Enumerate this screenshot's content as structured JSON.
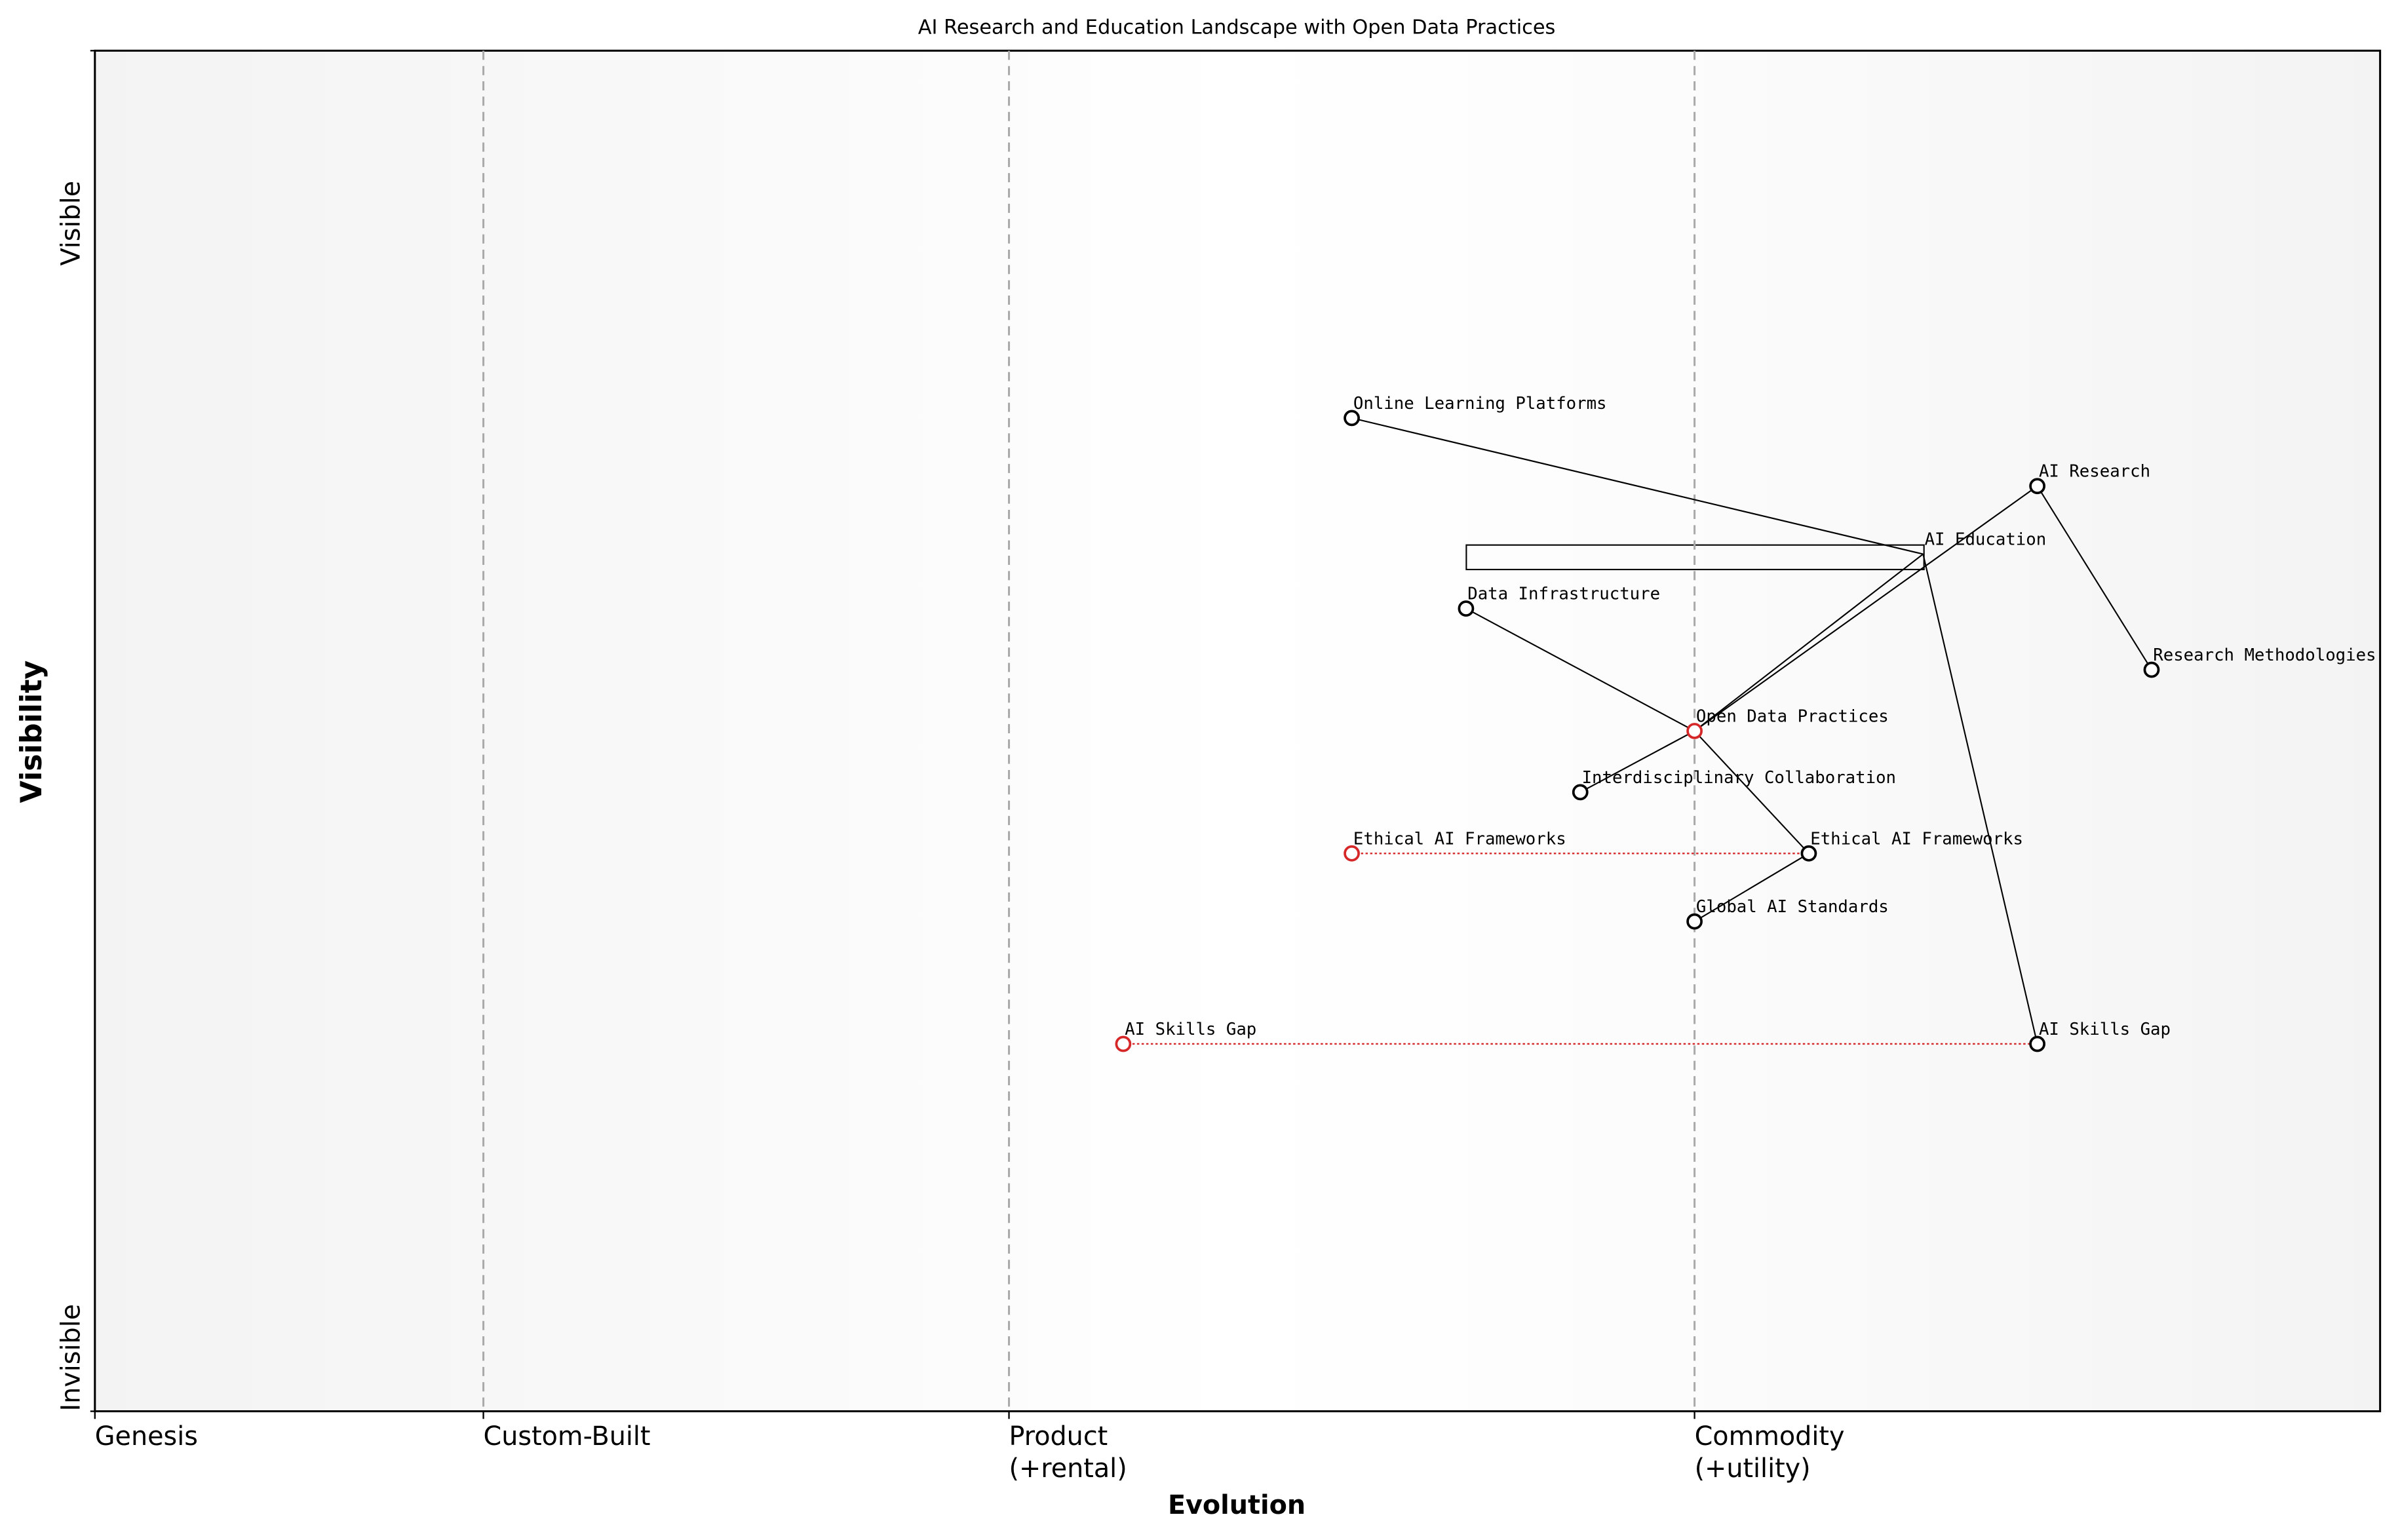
{
  "chart_data": {
    "type": "wardley",
    "title": "AI Research and Education Landscape with Open Data Practices",
    "xlabel": "Evolution",
    "ylabel": "Visibility",
    "xlim": [
      0,
      1
    ],
    "ylim": [
      0,
      1
    ],
    "xticks": [
      {
        "value": 0,
        "label": "Genesis"
      },
      {
        "value": 0.17,
        "label": "Custom-Built"
      },
      {
        "value": 0.4,
        "label": "Product\n(+rental)"
      },
      {
        "value": 0.7,
        "label": "Commodity\n(+utility)"
      }
    ],
    "stage_lines": true,
    "yticks": [
      {
        "value": 1,
        "label": "Visible"
      },
      {
        "value": 0,
        "label": "Invisible"
      }
    ],
    "node_color": "#000000",
    "nodes": [
      {
        "label": "Online Learning Platforms",
        "evolution": 0.55,
        "visibility": 0.73
      },
      {
        "label": "AI Research",
        "evolution": 0.85,
        "visibility": 0.68
      },
      {
        "label": "AI Education",
        "evolution": 0.8,
        "visibility": 0.63,
        "marker": false
      },
      {
        "label": "Data Infrastructure",
        "evolution": 0.6,
        "visibility": 0.59
      },
      {
        "label": "Research Methodologies",
        "evolution": 0.9,
        "visibility": 0.545
      },
      {
        "label": "Open Data Practices",
        "evolution": 0.7,
        "visibility": 0.5,
        "color": "#d62728"
      },
      {
        "label": "Interdisciplinary Collaboration",
        "evolution": 0.65,
        "visibility": 0.455
      },
      {
        "label": "Ethical AI Frameworks",
        "evolution": 0.75,
        "visibility": 0.41
      },
      {
        "label": "Global AI Standards",
        "evolution": 0.7,
        "visibility": 0.36
      },
      {
        "label": "AI Skills Gap",
        "evolution": 0.85,
        "visibility": 0.27
      }
    ],
    "edges": [
      [
        0,
        2
      ],
      [
        2,
        5
      ],
      [
        1,
        5
      ],
      [
        2,
        9
      ],
      [
        1,
        4
      ],
      [
        3,
        5
      ],
      [
        5,
        6
      ],
      [
        5,
        7
      ],
      [
        7,
        8
      ]
    ],
    "evolutions": [
      {
        "node": 7,
        "from": 0.55,
        "color": "#d62728"
      },
      {
        "node": 9,
        "from": 0.45,
        "color": "#d62728"
      }
    ]
  }
}
